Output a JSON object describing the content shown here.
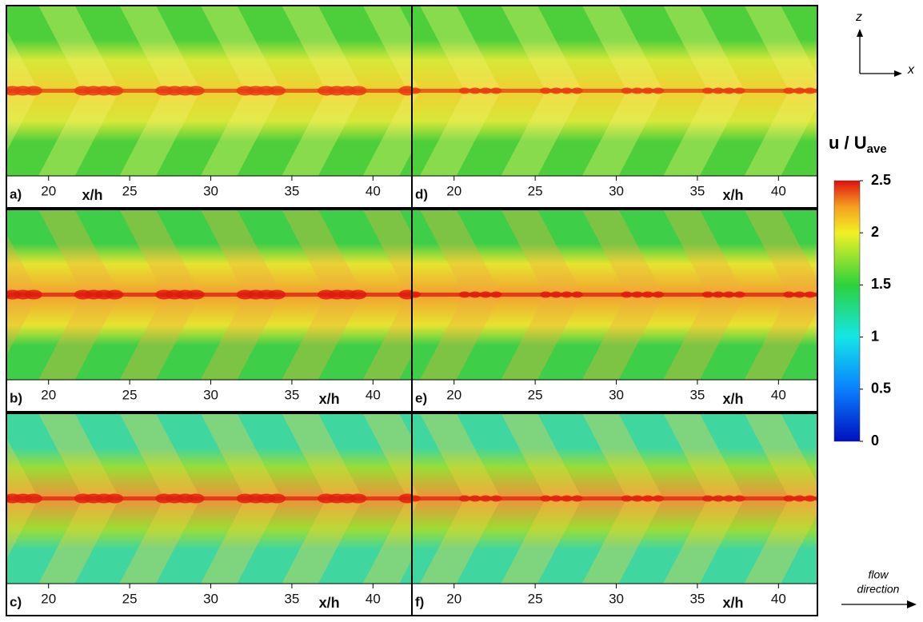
{
  "chart_data": {
    "type": "contour",
    "panels": [
      {
        "label": "a)",
        "xlabel": "x/h"
      },
      {
        "label": "b)",
        "xlabel": "x/h"
      },
      {
        "label": "c)",
        "xlabel": "x/h"
      },
      {
        "label": "d)",
        "xlabel": "x/h"
      },
      {
        "label": "e)",
        "xlabel": "x/h"
      },
      {
        "label": "f)",
        "xlabel": "x/h"
      }
    ],
    "xlim": [
      17.4,
      42.4
    ],
    "xticks": [
      20,
      25,
      30,
      35,
      40
    ],
    "colorbar": {
      "title": "u / U",
      "title_subscript": "ave",
      "lim": [
        0,
        2.5
      ],
      "ticks": [
        0,
        0.5,
        1,
        1.5,
        2,
        2.5
      ]
    },
    "axes_indicator": {
      "z": "z",
      "x": "x"
    },
    "flow_label": [
      "flow",
      "direction"
    ]
  }
}
